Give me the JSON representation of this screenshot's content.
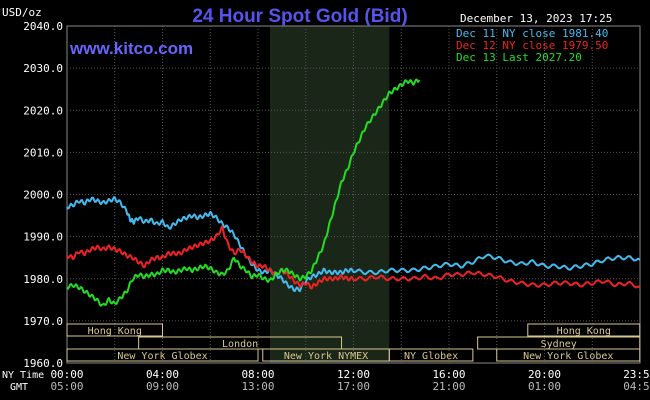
{
  "header": {
    "title": "24 Hour Spot Gold (Bid)",
    "unit_label": "USD/oz",
    "datetime": "December 13, 2023 17:25",
    "watermark": "www.kitco.com"
  },
  "colors": {
    "background": "#000000",
    "grid": "#555555",
    "axis_text": "#ffffff",
    "title": "#5555ee",
    "watermark": "#6666ff",
    "market_band": "#d8c890",
    "night_shade": "#1a2618"
  },
  "legend": [
    {
      "label": "Dec 11 NY close 1981.40",
      "color": "#44bbee"
    },
    {
      "label": "Dec 12 NY close 1979.50",
      "color": "#ee2222"
    },
    {
      "label": "Dec 13 Last 2027.20",
      "color": "#22dd22"
    }
  ],
  "time_axis": {
    "row1_label": "NY Time",
    "row2_label": "GMT",
    "ny": [
      "00:00",
      "04:00",
      "08:00",
      "12:00",
      "16:00",
      "20:00",
      "23:59"
    ],
    "gmt": [
      "05:00",
      "09:00",
      "13:00",
      "17:00",
      "21:00",
      "01:00",
      "04:59"
    ]
  },
  "markets": [
    {
      "name": "Hong Kong",
      "start": 0,
      "end": 4,
      "row": 0
    },
    {
      "name": "London",
      "start": 3,
      "end": 11.5,
      "row": 1
    },
    {
      "name": "New York Globex",
      "start": 0,
      "end": 8,
      "row": 2
    },
    {
      "name": "New York NYMEX",
      "start": 8.2,
      "end": 13.5,
      "row": 2
    },
    {
      "name": "NY Globex",
      "start": 13.5,
      "end": 17,
      "row": 2
    },
    {
      "name": "Hong Kong",
      "start": 19.3,
      "end": 23.99,
      "row": 0
    },
    {
      "name": "Sydney",
      "start": 17.2,
      "end": 23.99,
      "row": 1
    },
    {
      "name": "New York Globex",
      "start": 18,
      "end": 23.99,
      "row": 2
    }
  ],
  "chart_data": {
    "type": "line",
    "title": "24 Hour Spot Gold (Bid)",
    "ylabel": "USD/oz",
    "xlabel": "NY Time",
    "x_ticks": [
      "00:00",
      "04:00",
      "08:00",
      "12:00",
      "16:00",
      "20:00",
      "23:59"
    ],
    "y_ticks": [
      "1960.0",
      "1970.0",
      "1980.0",
      "1990.0",
      "2000.0",
      "2010.0",
      "2020.0",
      "2030.0",
      "2040.0"
    ],
    "ylim": [
      1960,
      2040
    ],
    "xlim_hours": [
      0,
      24
    ],
    "shaded_region_hours": [
      8.5,
      13.5
    ],
    "grid": true,
    "legend_position": "top-right",
    "series": [
      {
        "name": "Dec 11 NY close 1981.40",
        "color": "#44bbee",
        "points": [
          [
            0,
            1997
          ],
          [
            0.5,
            1997.5
          ],
          [
            1,
            1998.5
          ],
          [
            1.5,
            1998
          ],
          [
            2,
            1999
          ],
          [
            2.5,
            1998.5
          ],
          [
            3,
            1998
          ],
          [
            3.5,
            1998.5
          ],
          [
            4,
            1999
          ],
          [
            4.5,
            1998
          ],
          [
            5,
            1996
          ],
          [
            5.3,
            1994
          ],
          [
            5.6,
            1993.5
          ],
          [
            6,
            1994.5
          ],
          [
            6.5,
            1993.5
          ],
          [
            7,
            1994
          ],
          [
            7.5,
            1993
          ],
          [
            8,
            1993.5
          ],
          [
            8.5,
            1992
          ],
          [
            9,
            1993
          ],
          [
            9.5,
            1994
          ],
          [
            10,
            1994.5
          ],
          [
            10.5,
            1995
          ],
          [
            11,
            1994.5
          ],
          [
            11.5,
            1995
          ],
          [
            12,
            1995.5
          ],
          [
            12.5,
            1994.5
          ],
          [
            13,
            1993
          ],
          [
            13.5,
            1992
          ],
          [
            14,
            1990.5
          ],
          [
            14.5,
            1988
          ],
          [
            15,
            1985.5
          ],
          [
            15.5,
            1983.5
          ],
          [
            16,
            1982
          ],
          [
            16.5,
            1981.5
          ],
          [
            17,
            1982
          ],
          [
            17.5,
            1981
          ],
          [
            18,
            1980
          ],
          [
            18.5,
            1978.5
          ],
          [
            19,
            1977.5
          ],
          [
            19.5,
            1977.5
          ],
          [
            20,
            1979.5
          ],
          [
            20.5,
            1980.5
          ],
          [
            21,
            1981
          ],
          [
            21.5,
            1982
          ],
          [
            22,
            1981.5
          ],
          [
            22.5,
            1981.5
          ],
          [
            23,
            1981.5
          ],
          [
            23.5,
            1982
          ],
          [
            24,
            1982
          ],
          [
            25,
            1981.5
          ],
          [
            26,
            1981.5
          ],
          [
            27,
            1982
          ],
          [
            28,
            1982
          ],
          [
            29,
            1982
          ],
          [
            30,
            1982.5
          ],
          [
            31,
            1983
          ],
          [
            32,
            1983.5
          ],
          [
            33,
            1983
          ],
          [
            34,
            1984
          ],
          [
            35,
            1985.5
          ],
          [
            36,
            1985
          ],
          [
            37,
            1984
          ],
          [
            38,
            1983.5
          ],
          [
            39,
            1984
          ],
          [
            40,
            1983
          ],
          [
            41,
            1983
          ],
          [
            42,
            1982.5
          ],
          [
            43,
            1983
          ],
          [
            44,
            1983.5
          ],
          [
            45,
            1984.5
          ],
          [
            46,
            1985
          ],
          [
            47,
            1985
          ],
          [
            48,
            1984.5
          ]
        ]
      },
      {
        "name": "Dec 12 NY close 1979.50",
        "color": "#ee2222",
        "points": [
          [
            0,
            1985.5
          ],
          [
            0.5,
            1985
          ],
          [
            1,
            1986.5
          ],
          [
            1.5,
            1986
          ],
          [
            2,
            1987
          ],
          [
            2.5,
            1987.5
          ],
          [
            3,
            1987
          ],
          [
            3.5,
            1987.5
          ],
          [
            4,
            1987
          ],
          [
            4.5,
            1986.5
          ],
          [
            5,
            1985.5
          ],
          [
            5.5,
            1985
          ],
          [
            6,
            1984
          ],
          [
            6.5,
            1983
          ],
          [
            7,
            1984.5
          ],
          [
            7.5,
            1985
          ],
          [
            8,
            1985
          ],
          [
            8.5,
            1986
          ],
          [
            9,
            1986
          ],
          [
            9.5,
            1986
          ],
          [
            10,
            1987
          ],
          [
            10.5,
            1987.5
          ],
          [
            11,
            1988
          ],
          [
            11.5,
            1988.5
          ],
          [
            12,
            1989
          ],
          [
            12.5,
            1990
          ],
          [
            13,
            1992
          ],
          [
            13.5,
            1988
          ],
          [
            14,
            1986
          ],
          [
            14.5,
            1987
          ],
          [
            15,
            1985.5
          ],
          [
            15.5,
            1984
          ],
          [
            16,
            1983
          ],
          [
            16.5,
            1983
          ],
          [
            17,
            1982
          ],
          [
            17.5,
            1981
          ],
          [
            18,
            1982
          ],
          [
            18.5,
            1981
          ],
          [
            19,
            1979.5
          ],
          [
            19.5,
            1978.5
          ],
          [
            20,
            1979
          ],
          [
            20.5,
            1978
          ],
          [
            21,
            1979
          ],
          [
            21.5,
            1980
          ],
          [
            22,
            1980
          ],
          [
            22.5,
            1980
          ],
          [
            23,
            1980.5
          ],
          [
            23.5,
            1980
          ],
          [
            24,
            1980
          ],
          [
            25,
            1980
          ],
          [
            26,
            1980.5
          ],
          [
            27,
            1980
          ],
          [
            28,
            1980
          ],
          [
            29,
            1980
          ],
          [
            30,
            1980.5
          ],
          [
            31,
            1980
          ],
          [
            32,
            1981
          ],
          [
            33,
            1981
          ],
          [
            34,
            1981.5
          ],
          [
            35,
            1981
          ],
          [
            36,
            1980.5
          ],
          [
            37,
            1979.5
          ],
          [
            38,
            1979
          ],
          [
            39,
            1978.5
          ],
          [
            40,
            1978.5
          ],
          [
            41,
            1979
          ],
          [
            42,
            1979
          ],
          [
            43,
            1978.5
          ],
          [
            44,
            1979
          ],
          [
            45,
            1979.5
          ],
          [
            46,
            1978.5
          ],
          [
            47,
            1979
          ],
          [
            48,
            1978
          ]
        ]
      },
      {
        "name": "Dec 13 Last 2027.20",
        "color": "#22dd22",
        "points": [
          [
            0,
            1978
          ],
          [
            0.5,
            1978.5
          ],
          [
            1,
            1978
          ],
          [
            1.5,
            1977
          ],
          [
            2,
            1976
          ],
          [
            2.5,
            1975
          ],
          [
            3,
            1973.5
          ],
          [
            3.5,
            1975
          ],
          [
            4,
            1974
          ],
          [
            4.5,
            1975.5
          ],
          [
            5,
            1977
          ],
          [
            5.5,
            1980
          ],
          [
            6,
            1981
          ],
          [
            6.5,
            1980.5
          ],
          [
            7,
            1981
          ],
          [
            7.5,
            1981
          ],
          [
            8,
            1982
          ],
          [
            8.5,
            1982
          ],
          [
            9,
            1981.5
          ],
          [
            9.5,
            1982
          ],
          [
            10,
            1982.5
          ],
          [
            10.5,
            1982
          ],
          [
            11,
            1982.5
          ],
          [
            11.5,
            1983
          ],
          [
            12,
            1982.5
          ],
          [
            12.5,
            1981.5
          ],
          [
            13,
            1981
          ],
          [
            13.5,
            1982
          ],
          [
            14,
            1985
          ],
          [
            14.5,
            1983
          ],
          [
            15,
            1982
          ],
          [
            15.5,
            1980.5
          ],
          [
            16,
            1981
          ],
          [
            16.5,
            1980
          ],
          [
            17,
            1979.5
          ],
          [
            17.5,
            1981
          ],
          [
            18,
            1982
          ],
          [
            18.5,
            1982
          ],
          [
            19,
            1981
          ],
          [
            19.5,
            1980
          ],
          [
            20,
            1980.5
          ],
          [
            20.5,
            1982
          ],
          [
            21,
            1985
          ],
          [
            21.5,
            1988
          ],
          [
            22,
            1993
          ],
          [
            22.5,
            1998
          ],
          [
            23,
            2003
          ],
          [
            23.5,
            2006
          ],
          [
            24,
            2010
          ],
          [
            24.5,
            2013
          ],
          [
            25,
            2016
          ],
          [
            25.5,
            2018
          ],
          [
            26,
            2020
          ],
          [
            26.5,
            2022
          ],
          [
            27,
            2024
          ],
          [
            27.5,
            2025
          ],
          [
            28,
            2026
          ],
          [
            28.5,
            2027
          ],
          [
            29,
            2026.5
          ],
          [
            29.5,
            2027.2
          ]
        ]
      }
    ]
  }
}
